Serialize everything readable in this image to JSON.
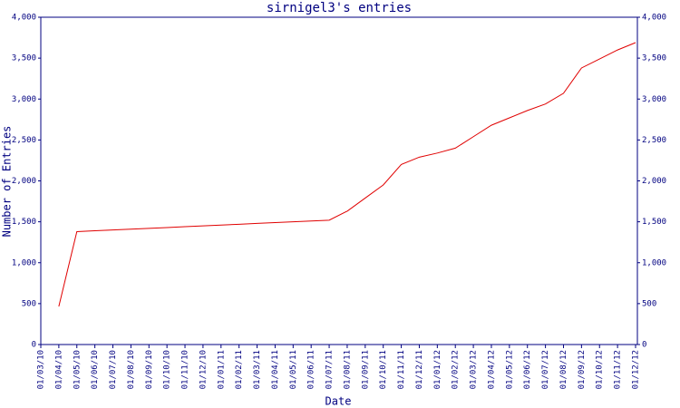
{
  "chart_data": {
    "type": "line",
    "title": "sirnigel3's entries",
    "x_label": "Date",
    "y_label": "Number of Entries",
    "categories": [
      "01/03/10",
      "01/04/10",
      "01/05/10",
      "01/06/10",
      "01/07/10",
      "01/08/10",
      "01/09/10",
      "01/10/10",
      "01/11/10",
      "01/12/10",
      "01/01/11",
      "01/02/11",
      "01/03/11",
      "01/04/11",
      "01/05/11",
      "01/06/11",
      "01/07/11",
      "01/08/11",
      "01/09/11",
      "01/10/11",
      "01/11/11",
      "01/12/11",
      "01/01/12",
      "01/02/12",
      "01/03/12",
      "01/04/12",
      "01/05/12",
      "01/06/12",
      "01/07/12",
      "01/08/12",
      "01/09/12",
      "01/10/12",
      "01/11/12",
      "01/12/12"
    ],
    "series": [
      {
        "name": "Entries",
        "color": "#e00000",
        "values": [
          null,
          465,
          1380,
          1390,
          1400,
          1410,
          1420,
          1430,
          1440,
          1450,
          1460,
          1470,
          1480,
          1490,
          1500,
          1510,
          1520,
          1630,
          1790,
          1950,
          2200,
          2290,
          2340,
          2400,
          2540,
          2680,
          2770,
          2860,
          2940,
          3070,
          3380,
          3490,
          3600,
          3690
        ]
      }
    ],
    "ylim": [
      0,
      4000
    ],
    "yticks": [
      0,
      500,
      {
        "value": 1000,
        "label": "1,000"
      },
      {
        "value": 1500,
        "label": "1,500"
      },
      {
        "value": 2000,
        "label": "2,000"
      },
      {
        "value": 2500,
        "label": "2,500"
      },
      {
        "value": 3000,
        "label": "3,000"
      },
      {
        "value": 3500,
        "label": "3,500"
      },
      {
        "value": 4000,
        "label": "4,000"
      }
    ],
    "axis_color": "#000080"
  }
}
